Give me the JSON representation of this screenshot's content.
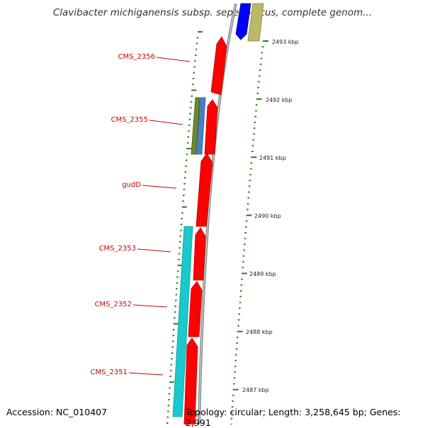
{
  "title": "Clavibacter michiganensis subsp. sepedonicus, complete genom...",
  "footer": {
    "accession": "Accession: NC_010407",
    "topology": "Topology: circular; Length: 3,258,645 bp; Genes: 2,991"
  },
  "colors": {
    "cds_forward": "#ff0000",
    "cds_reverse_olive": "#6b8a2a",
    "cds_reverse_steel": "#4a7fc4",
    "cds_reverse_cyan": "#19c9cc",
    "blue_feature": "#0000ff",
    "khaki_feature": "#bdb76b",
    "gene_label": "#cc0000",
    "tick_mark": "#2e7d1a",
    "backbone": "#8c8c8c"
  },
  "gene_labels": [
    {
      "text": "CMS_2356"
    },
    {
      "text": "CMS_2355"
    },
    {
      "text": "gudD"
    },
    {
      "text": "CMS_2353"
    },
    {
      "text": "CMS_2352"
    },
    {
      "text": "CMS_2351"
    }
  ],
  "scale_labels": [
    {
      "kbp": 2493,
      "text": "2493 kbp"
    },
    {
      "kbp": 2492,
      "text": "2492 kbp"
    },
    {
      "kbp": 2491,
      "text": "2491 kbp"
    },
    {
      "kbp": 2490,
      "text": "2490 kbp"
    },
    {
      "kbp": 2489,
      "text": "2489 kbp"
    },
    {
      "kbp": 2488,
      "text": "2488 kbp"
    },
    {
      "kbp": 2487,
      "text": "2487 kbp"
    }
  ]
}
